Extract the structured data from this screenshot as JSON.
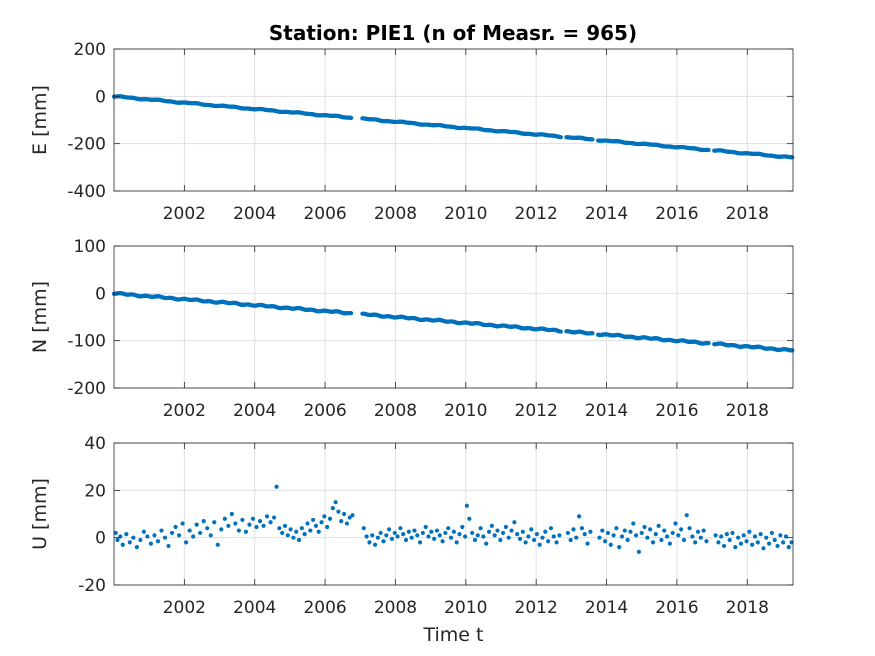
{
  "title": "Station: PIE1 (n of Measr. = 965)",
  "chart_data": [
    {
      "type": "scatter",
      "ylabel": "E [mm]",
      "xlabel": "",
      "xlim": [
        2000.0,
        2019.3
      ],
      "ylim": [
        -400,
        200
      ],
      "yticks": [
        -400,
        -200,
        0,
        200
      ],
      "xticks": [
        2002,
        2004,
        2006,
        2008,
        2010,
        2012,
        2014,
        2016,
        2018
      ],
      "grid": true,
      "color": "#0072BD",
      "trend": {
        "start_year": 2000.0,
        "start_value": 0,
        "rate_per_year": -13.4
      },
      "gaps": [
        [
          2006.75,
          2007.05
        ],
        [
          2012.7,
          2012.85
        ],
        [
          2013.6,
          2013.75
        ],
        [
          2016.9,
          2017.05
        ]
      ]
    },
    {
      "type": "scatter",
      "ylabel": "N [mm]",
      "xlabel": "",
      "xlim": [
        2000.0,
        2019.3
      ],
      "ylim": [
        -200,
        100
      ],
      "yticks": [
        -200,
        -100,
        0,
        100
      ],
      "xticks": [
        2002,
        2004,
        2006,
        2008,
        2010,
        2012,
        2014,
        2016,
        2018
      ],
      "grid": true,
      "color": "#0072BD",
      "trend": {
        "start_year": 2000.0,
        "start_value": 0,
        "rate_per_year": -6.25
      },
      "gaps": [
        [
          2006.75,
          2007.05
        ],
        [
          2012.7,
          2012.85
        ],
        [
          2013.6,
          2013.75
        ],
        [
          2016.9,
          2017.05
        ]
      ]
    },
    {
      "type": "scatter",
      "ylabel": "U [mm]",
      "xlabel": "Time t",
      "xlim": [
        2000.0,
        2019.3
      ],
      "ylim": [
        -20,
        40
      ],
      "yticks": [
        -20,
        0,
        20,
        40
      ],
      "xticks": [
        2002,
        2004,
        2006,
        2008,
        2010,
        2012,
        2014,
        2016,
        2018
      ],
      "grid": true,
      "color": "#0072BD",
      "points": [
        [
          2000.05,
          2.0
        ],
        [
          2000.1,
          -1.0
        ],
        [
          2000.18,
          0.5
        ],
        [
          2000.25,
          -3.0
        ],
        [
          2000.35,
          1.5
        ],
        [
          2000.45,
          -2.0
        ],
        [
          2000.55,
          0.0
        ],
        [
          2000.65,
          -4.0
        ],
        [
          2000.75,
          -1.0
        ],
        [
          2000.85,
          2.5
        ],
        [
          2000.95,
          0.5
        ],
        [
          2001.05,
          -2.5
        ],
        [
          2001.15,
          1.0
        ],
        [
          2001.25,
          -1.5
        ],
        [
          2001.35,
          3.0
        ],
        [
          2001.45,
          0.0
        ],
        [
          2001.55,
          -3.5
        ],
        [
          2001.65,
          2.0
        ],
        [
          2001.75,
          4.5
        ],
        [
          2001.85,
          1.0
        ],
        [
          2001.95,
          6.0
        ],
        [
          2002.05,
          -2.0
        ],
        [
          2002.15,
          3.0
        ],
        [
          2002.25,
          0.5
        ],
        [
          2002.35,
          5.5
        ],
        [
          2002.45,
          2.0
        ],
        [
          2002.55,
          7.0
        ],
        [
          2002.65,
          4.0
        ],
        [
          2002.75,
          1.0
        ],
        [
          2002.85,
          6.5
        ],
        [
          2002.95,
          -3.0
        ],
        [
          2003.05,
          3.5
        ],
        [
          2003.15,
          8.0
        ],
        [
          2003.25,
          5.0
        ],
        [
          2003.35,
          10.0
        ],
        [
          2003.45,
          6.0
        ],
        [
          2003.55,
          3.0
        ],
        [
          2003.65,
          7.5
        ],
        [
          2003.75,
          2.5
        ],
        [
          2003.85,
          5.5
        ],
        [
          2003.95,
          8.0
        ],
        [
          2004.05,
          4.5
        ],
        [
          2004.15,
          7.0
        ],
        [
          2004.25,
          5.0
        ],
        [
          2004.35,
          9.0
        ],
        [
          2004.45,
          6.5
        ],
        [
          2004.55,
          8.5
        ],
        [
          2004.62,
          21.5
        ],
        [
          2004.7,
          4.0
        ],
        [
          2004.78,
          2.0
        ],
        [
          2004.86,
          5.0
        ],
        [
          2004.94,
          1.0
        ],
        [
          2005.02,
          3.5
        ],
        [
          2005.1,
          0.0
        ],
        [
          2005.18,
          2.5
        ],
        [
          2005.26,
          -1.0
        ],
        [
          2005.34,
          4.0
        ],
        [
          2005.42,
          1.5
        ],
        [
          2005.5,
          6.0
        ],
        [
          2005.58,
          3.0
        ],
        [
          2005.66,
          7.5
        ],
        [
          2005.74,
          5.0
        ],
        [
          2005.82,
          2.5
        ],
        [
          2005.9,
          6.5
        ],
        [
          2005.98,
          9.0
        ],
        [
          2006.06,
          4.5
        ],
        [
          2006.14,
          8.0
        ],
        [
          2006.22,
          12.5
        ],
        [
          2006.3,
          15.0
        ],
        [
          2006.38,
          11.0
        ],
        [
          2006.46,
          7.0
        ],
        [
          2006.54,
          10.0
        ],
        [
          2006.62,
          6.0
        ],
        [
          2006.7,
          8.5
        ],
        [
          2006.78,
          9.5
        ],
        [
          2007.1,
          4.0
        ],
        [
          2007.18,
          0.5
        ],
        [
          2007.26,
          -2.0
        ],
        [
          2007.34,
          1.0
        ],
        [
          2007.42,
          -3.0
        ],
        [
          2007.5,
          0.0
        ],
        [
          2007.58,
          2.0
        ],
        [
          2007.66,
          -1.5
        ],
        [
          2007.74,
          1.0
        ],
        [
          2007.82,
          3.5
        ],
        [
          2007.9,
          -0.5
        ],
        [
          2007.98,
          2.0
        ],
        [
          2008.06,
          0.5
        ],
        [
          2008.14,
          4.0
        ],
        [
          2008.22,
          1.5
        ],
        [
          2008.3,
          -1.0
        ],
        [
          2008.38,
          2.5
        ],
        [
          2008.46,
          0.0
        ],
        [
          2008.54,
          3.0
        ],
        [
          2008.62,
          1.0
        ],
        [
          2008.7,
          -2.0
        ],
        [
          2008.78,
          2.0
        ],
        [
          2008.86,
          4.5
        ],
        [
          2008.94,
          0.5
        ],
        [
          2009.02,
          2.5
        ],
        [
          2009.1,
          -0.5
        ],
        [
          2009.18,
          3.0
        ],
        [
          2009.26,
          1.0
        ],
        [
          2009.34,
          -1.5
        ],
        [
          2009.42,
          2.0
        ],
        [
          2009.5,
          4.0
        ],
        [
          2009.58,
          0.0
        ],
        [
          2009.66,
          2.5
        ],
        [
          2009.74,
          -2.0
        ],
        [
          2009.82,
          1.5
        ],
        [
          2009.9,
          4.5
        ],
        [
          2009.98,
          0.5
        ],
        [
          2010.03,
          13.5
        ],
        [
          2010.1,
          8.0
        ],
        [
          2010.18,
          2.0
        ],
        [
          2010.26,
          -1.0
        ],
        [
          2010.34,
          1.0
        ],
        [
          2010.42,
          4.0
        ],
        [
          2010.5,
          0.5
        ],
        [
          2010.58,
          -2.5
        ],
        [
          2010.66,
          2.5
        ],
        [
          2010.74,
          5.0
        ],
        [
          2010.82,
          1.0
        ],
        [
          2010.9,
          3.0
        ],
        [
          2010.98,
          -1.0
        ],
        [
          2011.06,
          2.0
        ],
        [
          2011.14,
          4.5
        ],
        [
          2011.22,
          0.0
        ],
        [
          2011.3,
          3.0
        ],
        [
          2011.38,
          6.5
        ],
        [
          2011.46,
          1.5
        ],
        [
          2011.54,
          -0.5
        ],
        [
          2011.62,
          2.5
        ],
        [
          2011.7,
          -2.0
        ],
        [
          2011.78,
          0.5
        ],
        [
          2011.86,
          3.5
        ],
        [
          2011.94,
          -1.0
        ],
        [
          2012.02,
          1.5
        ],
        [
          2012.1,
          -3.0
        ],
        [
          2012.18,
          0.0
        ],
        [
          2012.26,
          2.5
        ],
        [
          2012.34,
          -1.5
        ],
        [
          2012.42,
          4.0
        ],
        [
          2012.5,
          0.5
        ],
        [
          2012.58,
          -2.0
        ],
        [
          2012.66,
          1.0
        ],
        [
          2012.9,
          2.0
        ],
        [
          2012.98,
          -1.0
        ],
        [
          2013.06,
          3.5
        ],
        [
          2013.14,
          0.0
        ],
        [
          2013.22,
          9.0
        ],
        [
          2013.3,
          4.0
        ],
        [
          2013.38,
          1.5
        ],
        [
          2013.46,
          -2.5
        ],
        [
          2013.54,
          2.5
        ],
        [
          2013.8,
          0.0
        ],
        [
          2013.88,
          3.0
        ],
        [
          2013.96,
          -1.5
        ],
        [
          2014.04,
          2.0
        ],
        [
          2014.12,
          -3.0
        ],
        [
          2014.2,
          1.0
        ],
        [
          2014.28,
          4.0
        ],
        [
          2014.36,
          -4.0
        ],
        [
          2014.44,
          0.5
        ],
        [
          2014.52,
          3.0
        ],
        [
          2014.6,
          -1.0
        ],
        [
          2014.68,
          2.5
        ],
        [
          2014.76,
          6.0
        ],
        [
          2014.84,
          1.0
        ],
        [
          2014.92,
          -6.0
        ],
        [
          2015.0,
          2.0
        ],
        [
          2015.08,
          4.5
        ],
        [
          2015.16,
          0.0
        ],
        [
          2015.24,
          3.5
        ],
        [
          2015.32,
          -2.0
        ],
        [
          2015.4,
          1.5
        ],
        [
          2015.48,
          5.0
        ],
        [
          2015.56,
          -1.0
        ],
        [
          2015.64,
          3.0
        ],
        [
          2015.72,
          0.5
        ],
        [
          2015.8,
          -2.5
        ],
        [
          2015.88,
          2.0
        ],
        [
          2015.96,
          6.0
        ],
        [
          2016.04,
          1.0
        ],
        [
          2016.12,
          3.5
        ],
        [
          2016.2,
          -1.0
        ],
        [
          2016.28,
          9.5
        ],
        [
          2016.36,
          4.0
        ],
        [
          2016.44,
          0.5
        ],
        [
          2016.52,
          -2.0
        ],
        [
          2016.6,
          2.5
        ],
        [
          2016.68,
          0.0
        ],
        [
          2016.76,
          3.0
        ],
        [
          2016.84,
          -1.5
        ],
        [
          2017.1,
          1.0
        ],
        [
          2017.18,
          -2.0
        ],
        [
          2017.26,
          0.5
        ],
        [
          2017.34,
          -3.5
        ],
        [
          2017.42,
          1.5
        ],
        [
          2017.5,
          -1.0
        ],
        [
          2017.58,
          2.0
        ],
        [
          2017.66,
          -4.0
        ],
        [
          2017.74,
          0.0
        ],
        [
          2017.82,
          -2.5
        ],
        [
          2017.9,
          1.0
        ],
        [
          2017.98,
          -1.5
        ],
        [
          2018.06,
          2.5
        ],
        [
          2018.14,
          -3.0
        ],
        [
          2018.22,
          0.5
        ],
        [
          2018.3,
          -2.0
        ],
        [
          2018.38,
          1.5
        ],
        [
          2018.46,
          -4.5
        ],
        [
          2018.54,
          0.0
        ],
        [
          2018.62,
          -2.5
        ],
        [
          2018.7,
          2.0
        ],
        [
          2018.78,
          -1.0
        ],
        [
          2018.86,
          -3.5
        ],
        [
          2018.94,
          1.0
        ],
        [
          2019.02,
          -2.0
        ],
        [
          2019.1,
          0.5
        ],
        [
          2019.18,
          -4.0
        ],
        [
          2019.26,
          -2.0
        ]
      ]
    }
  ]
}
